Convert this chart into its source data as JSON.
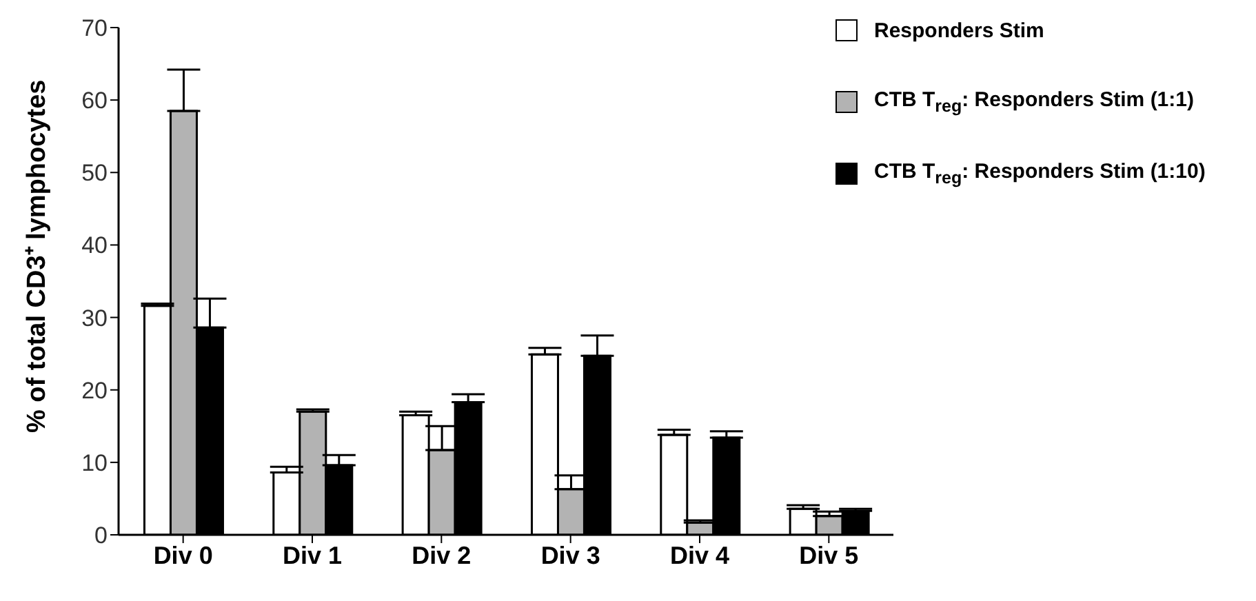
{
  "chart_data": {
    "type": "bar",
    "ylabel": "% of total CD3⁺ lymphocytes",
    "categories": [
      "Div 0",
      "Div 1",
      "Div 2",
      "Div 3",
      "Div 4",
      "Div 5"
    ],
    "series": [
      {
        "name": "Responders Stim",
        "color": "#ffffff",
        "values": [
          31.6,
          8.6,
          16.5,
          24.9,
          13.8,
          3.6
        ],
        "errors": [
          [
            31.6,
            31.9
          ],
          [
            8.6,
            9.4
          ],
          [
            16.5,
            17.0
          ],
          [
            24.9,
            25.8
          ],
          [
            13.8,
            14.5
          ],
          [
            3.6,
            4.1
          ]
        ]
      },
      {
        "name": "CTB T$_{reg}$: Responders Stim (1:1)",
        "color": "#b3b3b3",
        "values": [
          58.5,
          17,
          11.7,
          6.3,
          1.7,
          2.6
        ],
        "errors": [
          [
            58.5,
            64.2
          ],
          [
            17,
            17.3
          ],
          [
            11.7,
            15.0
          ],
          [
            6.3,
            8.2
          ],
          [
            1.7,
            2.0
          ],
          [
            2.6,
            3.2
          ]
        ]
      },
      {
        "name": "CTB T$_{reg}$: Responders Stim (1:10)",
        "color": "#000000",
        "values": [
          28.6,
          9.6,
          18.3,
          24.7,
          13.4,
          3.3
        ],
        "errors": [
          [
            28.6,
            32.6
          ],
          [
            9.6,
            11.0
          ],
          [
            18.3,
            19.4
          ],
          [
            24.7,
            27.5
          ],
          [
            13.4,
            14.3
          ],
          [
            3.3,
            3.6
          ]
        ]
      }
    ],
    "ylim": [
      0,
      70
    ],
    "yticks": [
      0,
      10,
      20,
      30,
      40,
      50,
      60,
      70
    ],
    "legend": "top right"
  }
}
